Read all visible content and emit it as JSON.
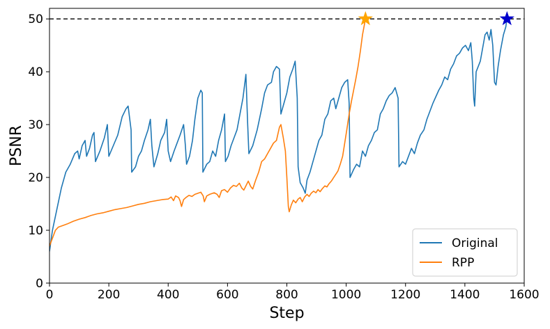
{
  "chart_data": {
    "type": "line",
    "title": "",
    "xlabel": "Step",
    "ylabel": "PSNR",
    "xlim": [
      0,
      1600
    ],
    "ylim": [
      0,
      52
    ],
    "xticks": [
      0,
      200,
      400,
      600,
      800,
      1000,
      1200,
      1400,
      1600
    ],
    "yticks": [
      0,
      10,
      20,
      30,
      40,
      50
    ],
    "grid": false,
    "legend_position": "lower-right",
    "reference_line": {
      "y": 50,
      "style": "dashed",
      "color": "#000000"
    },
    "series": [
      {
        "name": "Original",
        "color": "#1f77b4",
        "marker": {
          "x": 1542,
          "y": 50,
          "shape": "star",
          "color": "#0000cc"
        },
        "points": [
          [
            0,
            6
          ],
          [
            10,
            10
          ],
          [
            25,
            14
          ],
          [
            40,
            18
          ],
          [
            55,
            21
          ],
          [
            70,
            22.5
          ],
          [
            85,
            24.5
          ],
          [
            95,
            25
          ],
          [
            100,
            23.5
          ],
          [
            110,
            26
          ],
          [
            120,
            27
          ],
          [
            125,
            24
          ],
          [
            135,
            25.5
          ],
          [
            145,
            28
          ],
          [
            150,
            28.5
          ],
          [
            155,
            23
          ],
          [
            170,
            25
          ],
          [
            185,
            27.5
          ],
          [
            195,
            30
          ],
          [
            200,
            24
          ],
          [
            215,
            26
          ],
          [
            230,
            28
          ],
          [
            245,
            31.5
          ],
          [
            258,
            33
          ],
          [
            265,
            33.5
          ],
          [
            275,
            29
          ],
          [
            277,
            21
          ],
          [
            290,
            22
          ],
          [
            300,
            24
          ],
          [
            310,
            25
          ],
          [
            320,
            27
          ],
          [
            332,
            29
          ],
          [
            340,
            31
          ],
          [
            345,
            26
          ],
          [
            352,
            22
          ],
          [
            365,
            24.5
          ],
          [
            375,
            27
          ],
          [
            388,
            28.5
          ],
          [
            395,
            31
          ],
          [
            400,
            25
          ],
          [
            408,
            23
          ],
          [
            420,
            25
          ],
          [
            430,
            26.5
          ],
          [
            440,
            28
          ],
          [
            452,
            30
          ],
          [
            458,
            26
          ],
          [
            462,
            22.5
          ],
          [
            472,
            24
          ],
          [
            482,
            27
          ],
          [
            490,
            31
          ],
          [
            500,
            35
          ],
          [
            510,
            36.5
          ],
          [
            515,
            36
          ],
          [
            517,
            21
          ],
          [
            530,
            22.5
          ],
          [
            540,
            23
          ],
          [
            550,
            25
          ],
          [
            560,
            24
          ],
          [
            570,
            27
          ],
          [
            580,
            29
          ],
          [
            590,
            32
          ],
          [
            593,
            23
          ],
          [
            602,
            24
          ],
          [
            612,
            26
          ],
          [
            622,
            27.5
          ],
          [
            632,
            29
          ],
          [
            642,
            32
          ],
          [
            652,
            35
          ],
          [
            662,
            39.5
          ],
          [
            668,
            30
          ],
          [
            672,
            24.5
          ],
          [
            685,
            26
          ],
          [
            700,
            29
          ],
          [
            715,
            33
          ],
          [
            725,
            36
          ],
          [
            735,
            37.5
          ],
          [
            748,
            38
          ],
          [
            755,
            40
          ],
          [
            765,
            41
          ],
          [
            775,
            40.5
          ],
          [
            780,
            32
          ],
          [
            790,
            34
          ],
          [
            800,
            36
          ],
          [
            810,
            39
          ],
          [
            820,
            40.5
          ],
          [
            828,
            42
          ],
          [
            835,
            35
          ],
          [
            838,
            22
          ],
          [
            845,
            19
          ],
          [
            855,
            18
          ],
          [
            862,
            17
          ],
          [
            868,
            19.5
          ],
          [
            878,
            21
          ],
          [
            888,
            23
          ],
          [
            898,
            25
          ],
          [
            908,
            27
          ],
          [
            918,
            28
          ],
          [
            928,
            31
          ],
          [
            938,
            32
          ],
          [
            948,
            34.5
          ],
          [
            958,
            35
          ],
          [
            965,
            33
          ],
          [
            975,
            35
          ],
          [
            985,
            37
          ],
          [
            995,
            38
          ],
          [
            1005,
            38.5
          ],
          [
            1010,
            34
          ],
          [
            1013,
            20
          ],
          [
            1025,
            21.5
          ],
          [
            1035,
            22.5
          ],
          [
            1045,
            22
          ],
          [
            1055,
            25
          ],
          [
            1065,
            24
          ],
          [
            1075,
            26
          ],
          [
            1085,
            27
          ],
          [
            1095,
            28.5
          ],
          [
            1105,
            29
          ],
          [
            1115,
            32
          ],
          [
            1125,
            33
          ],
          [
            1135,
            34.5
          ],
          [
            1145,
            35.5
          ],
          [
            1155,
            36
          ],
          [
            1165,
            37
          ],
          [
            1175,
            35
          ],
          [
            1178,
            22
          ],
          [
            1190,
            23
          ],
          [
            1200,
            22.5
          ],
          [
            1210,
            24
          ],
          [
            1220,
            25.5
          ],
          [
            1230,
            24.5
          ],
          [
            1240,
            26.5
          ],
          [
            1250,
            28
          ],
          [
            1262,
            29
          ],
          [
            1272,
            31
          ],
          [
            1282,
            32.5
          ],
          [
            1292,
            34
          ],
          [
            1300,
            35
          ],
          [
            1312,
            36.5
          ],
          [
            1322,
            37.5
          ],
          [
            1332,
            39
          ],
          [
            1342,
            38.5
          ],
          [
            1352,
            40.5
          ],
          [
            1362,
            41.5
          ],
          [
            1372,
            43
          ],
          [
            1382,
            43.5
          ],
          [
            1392,
            44.5
          ],
          [
            1402,
            45
          ],
          [
            1412,
            44
          ],
          [
            1420,
            45.5
          ],
          [
            1425,
            42
          ],
          [
            1430,
            35
          ],
          [
            1433,
            33.5
          ],
          [
            1438,
            40
          ],
          [
            1445,
            41
          ],
          [
            1452,
            42
          ],
          [
            1460,
            44.5
          ],
          [
            1468,
            47
          ],
          [
            1475,
            47.5
          ],
          [
            1482,
            46
          ],
          [
            1488,
            48
          ],
          [
            1494,
            45
          ],
          [
            1500,
            38
          ],
          [
            1505,
            37.5
          ],
          [
            1512,
            41
          ],
          [
            1520,
            44
          ],
          [
            1530,
            47
          ],
          [
            1538,
            48.5
          ],
          [
            1542,
            50
          ]
        ]
      },
      {
        "name": "RPP",
        "color": "#ff7f0e",
        "marker": {
          "x": 1065,
          "y": 50,
          "shape": "star",
          "color": "#ffa500"
        },
        "points": [
          [
            0,
            7
          ],
          [
            10,
            8.5
          ],
          [
            20,
            10
          ],
          [
            30,
            10.6
          ],
          [
            45,
            10.9
          ],
          [
            60,
            11.2
          ],
          [
            80,
            11.7
          ],
          [
            100,
            12.1
          ],
          [
            120,
            12.4
          ],
          [
            140,
            12.8
          ],
          [
            160,
            13.1
          ],
          [
            180,
            13.3
          ],
          [
            200,
            13.6
          ],
          [
            220,
            13.9
          ],
          [
            240,
            14.1
          ],
          [
            260,
            14.3
          ],
          [
            280,
            14.6
          ],
          [
            300,
            14.9
          ],
          [
            320,
            15.1
          ],
          [
            340,
            15.4
          ],
          [
            360,
            15.6
          ],
          [
            380,
            15.8
          ],
          [
            400,
            15.9
          ],
          [
            410,
            16.3
          ],
          [
            418,
            15.6
          ],
          [
            425,
            16.5
          ],
          [
            435,
            16.2
          ],
          [
            440,
            15.6
          ],
          [
            445,
            14.5
          ],
          [
            452,
            15.8
          ],
          [
            460,
            16.2
          ],
          [
            470,
            16.6
          ],
          [
            480,
            16.4
          ],
          [
            490,
            16.8
          ],
          [
            500,
            17
          ],
          [
            510,
            17.2
          ],
          [
            518,
            16.5
          ],
          [
            522,
            15.4
          ],
          [
            530,
            16.5
          ],
          [
            540,
            16.8
          ],
          [
            555,
            17.1
          ],
          [
            565,
            16.8
          ],
          [
            572,
            16.2
          ],
          [
            580,
            17.5
          ],
          [
            590,
            17.7
          ],
          [
            600,
            17.2
          ],
          [
            610,
            18
          ],
          [
            620,
            18.5
          ],
          [
            630,
            18.3
          ],
          [
            640,
            18.9
          ],
          [
            648,
            18
          ],
          [
            655,
            17.6
          ],
          [
            662,
            18.4
          ],
          [
            670,
            19.3
          ],
          [
            678,
            18.3
          ],
          [
            685,
            17.8
          ],
          [
            695,
            19.5
          ],
          [
            705,
            21
          ],
          [
            715,
            23
          ],
          [
            725,
            23.5
          ],
          [
            735,
            24.5
          ],
          [
            745,
            25.5
          ],
          [
            755,
            26.5
          ],
          [
            765,
            27
          ],
          [
            775,
            29.5
          ],
          [
            780,
            30
          ],
          [
            788,
            27.5
          ],
          [
            795,
            25
          ],
          [
            800,
            20
          ],
          [
            805,
            14.5
          ],
          [
            808,
            13.5
          ],
          [
            815,
            14.8
          ],
          [
            822,
            15.7
          ],
          [
            830,
            15.2
          ],
          [
            838,
            15.9
          ],
          [
            845,
            16.2
          ],
          [
            852,
            15.4
          ],
          [
            860,
            16.3
          ],
          [
            868,
            16.8
          ],
          [
            875,
            16.4
          ],
          [
            882,
            17
          ],
          [
            890,
            17.4
          ],
          [
            898,
            17.1
          ],
          [
            905,
            17.7
          ],
          [
            912,
            17.3
          ],
          [
            920,
            17.9
          ],
          [
            928,
            18.4
          ],
          [
            935,
            18.2
          ],
          [
            942,
            18.8
          ],
          [
            950,
            19.3
          ],
          [
            958,
            20
          ],
          [
            965,
            20.6
          ],
          [
            972,
            21.2
          ],
          [
            980,
            22.5
          ],
          [
            988,
            24
          ],
          [
            995,
            26.5
          ],
          [
            1002,
            29
          ],
          [
            1010,
            32
          ],
          [
            1018,
            34.5
          ],
          [
            1025,
            36.5
          ],
          [
            1032,
            38.5
          ],
          [
            1040,
            41
          ],
          [
            1048,
            44
          ],
          [
            1055,
            47
          ],
          [
            1065,
            50
          ]
        ]
      }
    ]
  }
}
